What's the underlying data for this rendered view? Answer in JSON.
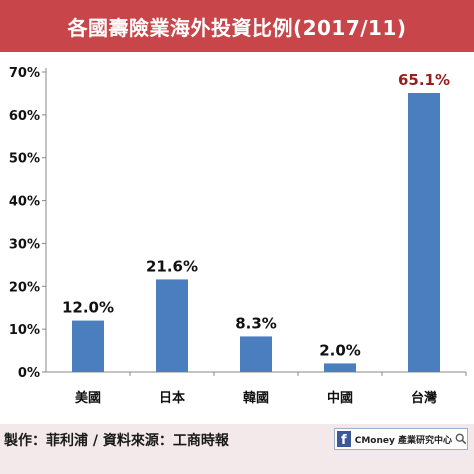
{
  "title": "各國壽險業海外投資比例(2017/11)",
  "colors": {
    "header": "#c8454a",
    "background": "#f4e9ea",
    "bar": "#4a7ebf",
    "label_default": "#111111",
    "label_highlight": "#9b1c1c"
  },
  "chart_data": {
    "type": "bar",
    "title": "各國壽險業海外投資比例(2017/11)",
    "categories": [
      "美國",
      "日本",
      "韓國",
      "中國",
      "台灣"
    ],
    "values": [
      12.0,
      21.6,
      8.3,
      2.0,
      65.1
    ],
    "value_labels": [
      "12.0%",
      "21.6%",
      "8.3%",
      "2.0%",
      "65.1%"
    ],
    "highlight_index": 4,
    "y_ticks": [
      "0%",
      "10%",
      "20%",
      "30%",
      "40%",
      "50%",
      "60%",
      "70%"
    ],
    "ylim": [
      0,
      70
    ],
    "grid": false,
    "legend": "none"
  },
  "footer": {
    "credit": "製作：菲利浦 / 資料來源：工商時報",
    "logo_letter": "f",
    "logo_text": "CMoney 產業研究中心",
    "logo_icon": "search-icon"
  }
}
